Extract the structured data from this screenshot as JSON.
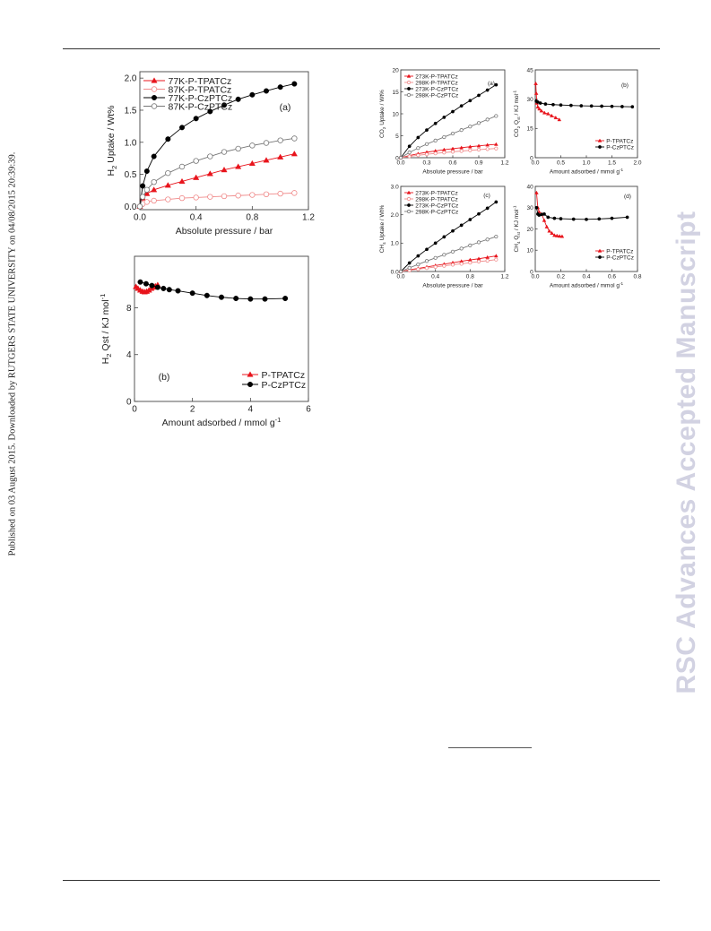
{
  "side_left_text": "Published on 03 August 2015. Downloaded by RUTGERS STATE UNIVERSITY on 04/08/2015 20:39:39.",
  "side_right_text": "RSC Advances Accepted Manuscript",
  "chart_data": [
    {
      "id": "h2-uptake",
      "panel": "(a)",
      "type": "line",
      "xlabel": "Absolute pressure / bar",
      "ylabel": "H2 Uptake / Wt%",
      "xlim": [
        0,
        1.2
      ],
      "ylim": [
        -0.05,
        2.1
      ],
      "xticks": [
        0.0,
        0.4,
        0.8,
        1.2
      ],
      "xtick_labels": [
        "0.0",
        "0.4",
        "0.8",
        "1.2"
      ],
      "yticks": [
        0.0,
        0.5,
        1.0,
        1.5,
        2.0
      ],
      "ytick_labels": [
        "0.0",
        "0.5",
        "1.0",
        "1.5",
        "2.0"
      ],
      "legend_position": "top-left",
      "series": [
        {
          "name": "77K-P-TPATCz",
          "color": "#e8141c",
          "marker": "triangle",
          "x": [
            0,
            0.02,
            0.05,
            0.1,
            0.2,
            0.3,
            0.4,
            0.5,
            0.6,
            0.7,
            0.8,
            0.9,
            1.0,
            1.1
          ],
          "y": [
            0,
            0.13,
            0.2,
            0.26,
            0.33,
            0.39,
            0.45,
            0.51,
            0.57,
            0.62,
            0.67,
            0.72,
            0.77,
            0.82
          ]
        },
        {
          "name": "87K-P-TPATCz",
          "color": "#f08a8a",
          "marker": "open-circle",
          "x": [
            0,
            0.02,
            0.05,
            0.1,
            0.2,
            0.3,
            0.4,
            0.5,
            0.6,
            0.7,
            0.8,
            0.9,
            1.0,
            1.1
          ],
          "y": [
            0,
            0.04,
            0.07,
            0.09,
            0.11,
            0.13,
            0.14,
            0.15,
            0.16,
            0.17,
            0.18,
            0.19,
            0.2,
            0.21
          ]
        },
        {
          "name": "77K-P-CzPTCz",
          "color": "#000000",
          "marker": "filled-circle",
          "x": [
            0,
            0.02,
            0.05,
            0.1,
            0.2,
            0.3,
            0.4,
            0.5,
            0.6,
            0.7,
            0.8,
            0.9,
            1.0,
            1.1
          ],
          "y": [
            0,
            0.32,
            0.55,
            0.78,
            1.05,
            1.23,
            1.37,
            1.48,
            1.58,
            1.67,
            1.74,
            1.8,
            1.86,
            1.91
          ]
        },
        {
          "name": "87K-P-CzPTCz",
          "color": "#777777",
          "marker": "open-circle",
          "x": [
            0,
            0.02,
            0.05,
            0.1,
            0.2,
            0.3,
            0.4,
            0.5,
            0.6,
            0.7,
            0.8,
            0.9,
            1.0,
            1.1
          ],
          "y": [
            0,
            0.15,
            0.26,
            0.38,
            0.52,
            0.62,
            0.71,
            0.78,
            0.85,
            0.9,
            0.95,
            0.99,
            1.03,
            1.06
          ]
        }
      ]
    },
    {
      "id": "h2-qst",
      "panel": "(b)",
      "type": "line",
      "xlabel": "Amount adsorbed / mmol g-1",
      "ylabel": "H2 Qst / KJ mol-1",
      "xlim": [
        0,
        6
      ],
      "ylim": [
        0,
        12.4
      ],
      "xticks": [
        0,
        2,
        4,
        6
      ],
      "xtick_labels": [
        "0",
        "2",
        "4",
        "6"
      ],
      "yticks": [
        0,
        4,
        8
      ],
      "ytick_labels": [
        "0",
        "4",
        "8"
      ],
      "legend_position": "bottom-right",
      "series": [
        {
          "name": "P-TPATCz",
          "color": "#e8141c",
          "marker": "triangle",
          "x": [
            0.05,
            0.12,
            0.2,
            0.28,
            0.35,
            0.42,
            0.5,
            0.58,
            0.65,
            0.72,
            0.8
          ],
          "y": [
            9.8,
            9.65,
            9.5,
            9.4,
            9.35,
            9.4,
            9.5,
            9.65,
            9.75,
            9.85,
            9.95
          ]
        },
        {
          "name": "P-CzPTCz",
          "color": "#000000",
          "marker": "filled-circle",
          "x": [
            0.2,
            0.4,
            0.6,
            0.8,
            1.0,
            1.2,
            1.5,
            2.0,
            2.5,
            3.0,
            3.5,
            4.0,
            4.5,
            5.2
          ],
          "y": [
            10.2,
            10.05,
            9.9,
            9.75,
            9.65,
            9.55,
            9.45,
            9.25,
            9.05,
            8.9,
            8.8,
            8.75,
            8.75,
            8.8
          ]
        }
      ]
    },
    {
      "id": "co2-uptake",
      "panel": "(a)",
      "type": "line",
      "xlabel": "Absolute pressure / bar",
      "ylabel": "CO2 Uptake / Wt%",
      "xlim": [
        0,
        1.2
      ],
      "ylim": [
        0,
        20
      ],
      "xticks": [
        0.0,
        0.3,
        0.6,
        0.9,
        1.2
      ],
      "xtick_labels": [
        "0.0",
        "0.3",
        "0.6",
        "0.9",
        "1.2"
      ],
      "yticks": [
        0,
        5,
        10,
        15,
        20
      ],
      "ytick_labels": [
        "0",
        "5",
        "10",
        "15",
        "20"
      ],
      "legend_position": "top-left",
      "series": [
        {
          "name": "273K-P-TPATCz",
          "color": "#e8141c",
          "marker": "triangle",
          "x": [
            0,
            0.1,
            0.2,
            0.3,
            0.4,
            0.5,
            0.6,
            0.7,
            0.8,
            0.9,
            1.0,
            1.1
          ],
          "y": [
            0,
            0.5,
            0.9,
            1.25,
            1.55,
            1.82,
            2.05,
            2.28,
            2.5,
            2.7,
            2.9,
            3.05
          ]
        },
        {
          "name": "298K-P-TPATCz",
          "color": "#f08a8a",
          "marker": "open-circle",
          "x": [
            0,
            0.1,
            0.2,
            0.3,
            0.4,
            0.5,
            0.6,
            0.7,
            0.8,
            0.9,
            1.0,
            1.1
          ],
          "y": [
            0,
            0.3,
            0.55,
            0.78,
            0.98,
            1.17,
            1.35,
            1.52,
            1.68,
            1.83,
            1.97,
            2.1
          ]
        },
        {
          "name": "273K-P-CzPTCz",
          "color": "#000000",
          "marker": "filled-circle",
          "x": [
            0,
            0.1,
            0.2,
            0.3,
            0.4,
            0.5,
            0.6,
            0.7,
            0.8,
            0.9,
            1.0,
            1.1
          ],
          "y": [
            0,
            2.6,
            4.6,
            6.3,
            7.8,
            9.2,
            10.5,
            11.8,
            13.0,
            14.2,
            15.4,
            16.6
          ]
        },
        {
          "name": "298K-P-CzPTCz",
          "color": "#777777",
          "marker": "open-circle",
          "x": [
            0,
            0.1,
            0.2,
            0.3,
            0.4,
            0.5,
            0.6,
            0.7,
            0.8,
            0.9,
            1.0,
            1.1
          ],
          "y": [
            0,
            1.2,
            2.2,
            3.1,
            3.9,
            4.7,
            5.5,
            6.3,
            7.1,
            7.9,
            8.7,
            9.5
          ]
        }
      ]
    },
    {
      "id": "co2-qst",
      "panel": "(b)",
      "type": "line",
      "xlabel": "Amount adsorbed / mmol g-1",
      "ylabel": "CO2 Qst / KJ mol-1",
      "xlim": [
        0,
        2.0
      ],
      "ylim": [
        0,
        45
      ],
      "xticks": [
        0.0,
        0.5,
        1.0,
        1.5,
        2.0
      ],
      "xtick_labels": [
        "0.0",
        "0.5",
        "1.0",
        "1.5",
        "2.0"
      ],
      "yticks": [
        0,
        15,
        30,
        45
      ],
      "ytick_labels": [
        "0",
        "15",
        "30",
        "45"
      ],
      "legend_position": "bottom-right",
      "series": [
        {
          "name": "P-TPATCz",
          "color": "#e8141c",
          "marker": "triangle",
          "x": [
            0.01,
            0.02,
            0.03,
            0.05,
            0.08,
            0.12,
            0.18,
            0.25,
            0.32,
            0.4,
            0.47
          ],
          "y": [
            38,
            33,
            28,
            26,
            25,
            24,
            23,
            22.5,
            21.5,
            20.5,
            19.5
          ]
        },
        {
          "name": "P-CzPTCz",
          "color": "#000000",
          "marker": "filled-circle",
          "x": [
            0.02,
            0.05,
            0.1,
            0.2,
            0.35,
            0.5,
            0.7,
            0.9,
            1.1,
            1.3,
            1.5,
            1.7,
            1.9
          ],
          "y": [
            29,
            28.5,
            28,
            27.5,
            27.2,
            27,
            26.8,
            26.6,
            26.5,
            26.4,
            26.3,
            26.2,
            26.1
          ]
        }
      ]
    },
    {
      "id": "ch4-uptake",
      "panel": "(c)",
      "type": "line",
      "xlabel": "Absolute pressure / bar",
      "ylabel": "CH4 Uptake / Wt%",
      "xlim": [
        0,
        1.2
      ],
      "ylim": [
        0,
        3.0
      ],
      "xticks": [
        0.0,
        0.4,
        0.8,
        1.2
      ],
      "xtick_labels": [
        "0.0",
        "0.4",
        "0.8",
        "1.2"
      ],
      "yticks": [
        0.0,
        1.0,
        2.0,
        3.0
      ],
      "ytick_labels": [
        "0.0",
        "1.0",
        "2.0",
        "3.0"
      ],
      "legend_position": "top-left",
      "series": [
        {
          "name": "273K-P-TPATCz",
          "color": "#e8141c",
          "marker": "triangle",
          "x": [
            0,
            0.1,
            0.2,
            0.3,
            0.4,
            0.5,
            0.6,
            0.7,
            0.8,
            0.9,
            1.0,
            1.1
          ],
          "y": [
            0,
            0.06,
            0.11,
            0.16,
            0.21,
            0.26,
            0.31,
            0.36,
            0.41,
            0.45,
            0.5,
            0.55
          ]
        },
        {
          "name": "298K-P-TPATCz",
          "color": "#f08a8a",
          "marker": "open-circle",
          "x": [
            0,
            0.1,
            0.2,
            0.3,
            0.4,
            0.5,
            0.6,
            0.7,
            0.8,
            0.9,
            1.0,
            1.1
          ],
          "y": [
            0,
            0.04,
            0.08,
            0.12,
            0.16,
            0.2,
            0.24,
            0.27,
            0.31,
            0.35,
            0.38,
            0.42
          ]
        },
        {
          "name": "273K-P-CzPTCz",
          "color": "#000000",
          "marker": "filled-circle",
          "x": [
            0,
            0.1,
            0.2,
            0.3,
            0.4,
            0.5,
            0.6,
            0.7,
            0.8,
            0.9,
            1.0,
            1.1
          ],
          "y": [
            0,
            0.3,
            0.55,
            0.78,
            1.0,
            1.22,
            1.43,
            1.63,
            1.83,
            2.03,
            2.23,
            2.45
          ]
        },
        {
          "name": "298K-P-CzPTCz",
          "color": "#777777",
          "marker": "open-circle",
          "x": [
            0,
            0.1,
            0.2,
            0.3,
            0.4,
            0.5,
            0.6,
            0.7,
            0.8,
            0.9,
            1.0,
            1.1
          ],
          "y": [
            0,
            0.13,
            0.25,
            0.37,
            0.48,
            0.59,
            0.7,
            0.81,
            0.92,
            1.03,
            1.13,
            1.23
          ]
        }
      ]
    },
    {
      "id": "ch4-qst",
      "panel": "(d)",
      "type": "line",
      "xlabel": "Amount adsorbed / mmol g-1",
      "ylabel": "CH4 Qst / KJ mol-1",
      "xlim": [
        0,
        0.8
      ],
      "ylim": [
        0,
        40
      ],
      "xticks": [
        0.0,
        0.2,
        0.4,
        0.6,
        0.8
      ],
      "xtick_labels": [
        "0.0",
        "0.2",
        "0.4",
        "0.6",
        "0.8"
      ],
      "yticks": [
        0,
        10,
        20,
        30,
        40
      ],
      "ytick_labels": [
        "0",
        "10",
        "20",
        "30",
        "40"
      ],
      "legend_position": "bottom-right",
      "series": [
        {
          "name": "P-TPATCz",
          "color": "#e8141c",
          "marker": "triangle",
          "x": [
            0.01,
            0.02,
            0.03,
            0.05,
            0.07,
            0.09,
            0.11,
            0.13,
            0.15,
            0.17,
            0.19,
            0.21
          ],
          "y": [
            37,
            30,
            28,
            27,
            24,
            21,
            19,
            18,
            17,
            16.8,
            16.6,
            16.5
          ]
        },
        {
          "name": "P-CzPTCz",
          "color": "#000000",
          "marker": "filled-circle",
          "x": [
            0.01,
            0.02,
            0.03,
            0.05,
            0.07,
            0.1,
            0.15,
            0.2,
            0.3,
            0.4,
            0.5,
            0.6,
            0.72
          ],
          "y": [
            30,
            27,
            26.5,
            26.8,
            27,
            25.5,
            25,
            24.8,
            24.6,
            24.5,
            24.7,
            25,
            25.5
          ]
        }
      ]
    }
  ]
}
